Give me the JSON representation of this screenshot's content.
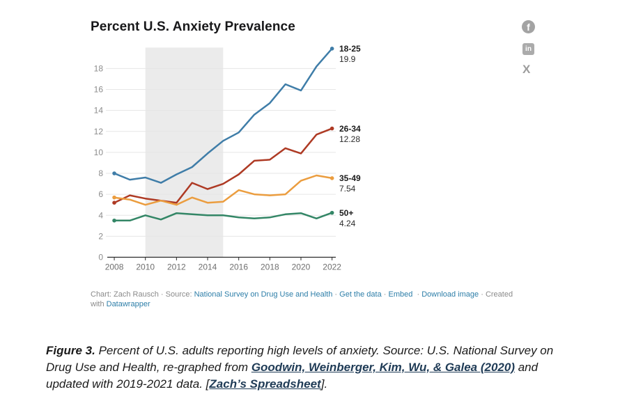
{
  "page": {
    "title": "Percent U.S. Anxiety Prevalence"
  },
  "social": {
    "facebook_glyph": "f",
    "linkedin_glyph": "in",
    "x_glyph": "X"
  },
  "chart_data": {
    "type": "line",
    "title": "Percent U.S. Anxiety Prevalence",
    "xlabel": "",
    "ylabel": "",
    "x": [
      2008,
      2009,
      2010,
      2011,
      2012,
      2013,
      2014,
      2015,
      2016,
      2017,
      2018,
      2019,
      2020,
      2021,
      2022
    ],
    "series": [
      {
        "name": "18-25",
        "color": "#3f7da8",
        "end_label": "19.9",
        "values": [
          8.0,
          7.4,
          7.6,
          7.1,
          7.9,
          8.6,
          9.9,
          11.1,
          11.9,
          13.6,
          14.7,
          16.5,
          15.9,
          18.2,
          19.9
        ]
      },
      {
        "name": "26-34",
        "color": "#ae3a24",
        "end_label": "12.28",
        "values": [
          5.2,
          5.9,
          5.6,
          5.4,
          5.2,
          7.1,
          6.5,
          7.0,
          7.9,
          9.2,
          9.3,
          10.4,
          9.9,
          11.7,
          12.28
        ]
      },
      {
        "name": "35-49",
        "color": "#eb9d3f",
        "end_label": "7.54",
        "values": [
          5.7,
          5.5,
          5.0,
          5.4,
          5.0,
          5.7,
          5.2,
          5.3,
          6.4,
          6.0,
          5.9,
          6.0,
          7.3,
          7.8,
          7.54
        ]
      },
      {
        "name": "50+",
        "color": "#338666",
        "end_label": "4.24",
        "values": [
          3.5,
          3.5,
          4.0,
          3.6,
          4.2,
          4.1,
          4.0,
          4.0,
          3.8,
          3.7,
          3.8,
          4.1,
          4.2,
          3.7,
          4.24
        ]
      }
    ],
    "x_ticks": [
      2008,
      2010,
      2012,
      2014,
      2016,
      2018,
      2020,
      2022
    ],
    "y_ticks": [
      0,
      2,
      4,
      6,
      8,
      10,
      12,
      14,
      16,
      18
    ],
    "ylim": [
      0,
      20
    ],
    "xlim": [
      2007.55,
      2022.24
    ],
    "shaded_region": [
      2010,
      2015
    ],
    "grid": true,
    "legend_position": "right-edge-labels",
    "colors": {
      "band": "#ebebeb",
      "gridline": "#e6e6e6",
      "axis": "#2a2a2a",
      "tick_label": "#6f6f6f",
      "y_label": "#8c8c8c"
    }
  },
  "footer": {
    "credit": "Chart: Zach Rausch",
    "sep": "·",
    "source_label": "Source:",
    "source_link": "National Survey on Drug Use and Health",
    "get_data": "Get the data",
    "embed": "Embed",
    "download": "Download image",
    "created_with": "Created with",
    "datawrapper": "Datawrapper"
  },
  "caption": {
    "fig_label": "Figure 3.",
    "text1": " Percent of U.S. adults reporting high levels of anxiety. Source: U.S. National Survey on Drug Use and Health, re-graphed from ",
    "link1": "Goodwin, Weinberger, Kim, Wu, & Galea (2020)",
    "text2": " and updated with 2019-2021 data. [",
    "link2": "Zach’s Spreadsheet",
    "text3": "]."
  }
}
